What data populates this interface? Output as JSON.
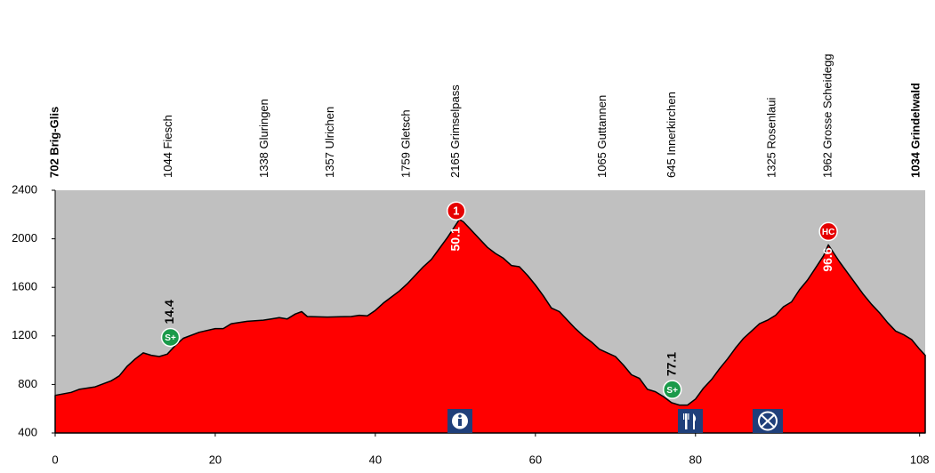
{
  "chart_data": {
    "type": "area",
    "color": "#ff0000",
    "background": "#c0c0c0",
    "xlim": [
      0,
      108.7
    ],
    "ylim": [
      400,
      2400
    ],
    "xticks": [
      0,
      20,
      40,
      60,
      80,
      108
    ],
    "yticks": [
      400,
      800,
      1200,
      1600,
      2000,
      2400
    ],
    "x": [
      0,
      2,
      3,
      5,
      7,
      8,
      9,
      10,
      11,
      12,
      13,
      14,
      15,
      16,
      18,
      20,
      21,
      22,
      24,
      26,
      27,
      28,
      29,
      30,
      30.8,
      31.5,
      34,
      37,
      38,
      39,
      40,
      41,
      42,
      43,
      44,
      45,
      46,
      47,
      48,
      49,
      50,
      50.5,
      51,
      52,
      53,
      54,
      55,
      56,
      57,
      58,
      59,
      60,
      61,
      62,
      63,
      64,
      65,
      66,
      67,
      68,
      69,
      70,
      71,
      72,
      73,
      74,
      75,
      76,
      77,
      78,
      79,
      80,
      81,
      82,
      83,
      84,
      85,
      86,
      87,
      88,
      89,
      90,
      91,
      92,
      93,
      94,
      95,
      96,
      96.6,
      97,
      98,
      99,
      100,
      101,
      102,
      103,
      104,
      105,
      106,
      107,
      108,
      108.7
    ],
    "values": [
      710,
      735,
      760,
      780,
      830,
      870,
      950,
      1010,
      1060,
      1040,
      1030,
      1050,
      1120,
      1180,
      1230,
      1260,
      1260,
      1300,
      1320,
      1330,
      1340,
      1350,
      1340,
      1380,
      1400,
      1360,
      1355,
      1360,
      1370,
      1365,
      1410,
      1470,
      1520,
      1570,
      1630,
      1700,
      1770,
      1830,
      1920,
      2010,
      2110,
      2160,
      2140,
      2070,
      2000,
      1930,
      1880,
      1840,
      1780,
      1770,
      1700,
      1620,
      1530,
      1430,
      1400,
      1330,
      1260,
      1200,
      1150,
      1090,
      1060,
      1030,
      960,
      880,
      850,
      760,
      740,
      700,
      650,
      630,
      630,
      680,
      770,
      840,
      930,
      1010,
      1100,
      1180,
      1240,
      1300,
      1330,
      1370,
      1440,
      1480,
      1580,
      1660,
      1760,
      1860,
      1950,
      1910,
      1810,
      1720,
      1630,
      1540,
      1460,
      1390,
      1310,
      1240,
      1210,
      1170,
      1090,
      1040
    ],
    "places": [
      {
        "label": "702 Brig-Glis",
        "km": 0,
        "bold": true
      },
      {
        "label": "1044 Fiesch",
        "km": 14.2,
        "bold": false
      },
      {
        "label": "1338 Gluringen",
        "km": 26.2,
        "bold": false
      },
      {
        "label": "1357 Ulrichen",
        "km": 34.4,
        "bold": false
      },
      {
        "label": "1759 Gletsch",
        "km": 43.9,
        "bold": false
      },
      {
        "label": "2165 Grimselpass",
        "km": 50.1,
        "bold": false
      },
      {
        "label": "1065 Guttannen",
        "km": 68.4,
        "bold": false
      },
      {
        "label": "645 Innerkirchen",
        "km": 77.1,
        "bold": false
      },
      {
        "label": "1325 Rosenlaui",
        "km": 89.6,
        "bold": false
      },
      {
        "label": "1962 Grosse Scheidegg",
        "km": 96.6,
        "bold": false
      },
      {
        "label": "1034 Grindelwald",
        "km": 107.6,
        "bold": true
      }
    ],
    "climbs": [
      {
        "category": "1",
        "km": 50.1
      },
      {
        "category": "HC",
        "km": 96.6
      }
    ],
    "sprints": [
      {
        "symbol": "S+",
        "km": 14.4
      },
      {
        "symbol": "S+",
        "km": 77.1
      }
    ]
  }
}
